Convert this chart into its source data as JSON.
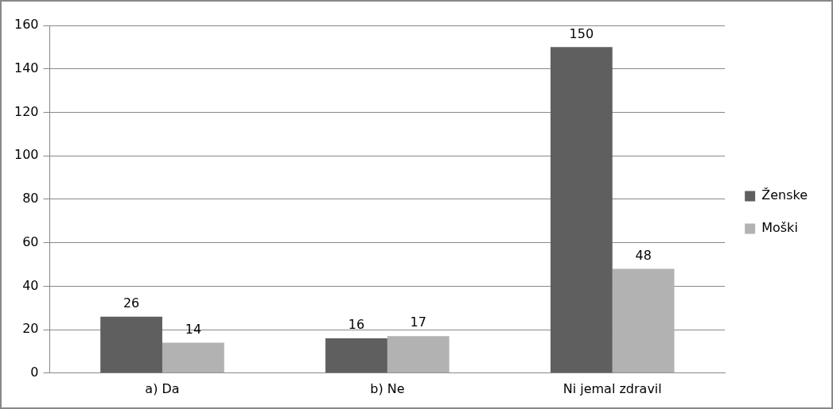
{
  "chart_data": {
    "type": "bar",
    "categories": [
      "a) Da",
      "b) Ne",
      "Ni jemal zdravil"
    ],
    "series": [
      {
        "name": "Ženske",
        "color": "#5f5f5f",
        "values": [
          26,
          16,
          150
        ]
      },
      {
        "name": "Moški",
        "color": "#b2b2b2",
        "values": [
          14,
          17,
          48
        ]
      }
    ],
    "ylim": [
      0,
      160
    ],
    "yticks": [
      0,
      20,
      40,
      60,
      80,
      100,
      120,
      140,
      160
    ],
    "grid": "y",
    "legend": "right",
    "data_labels": true
  }
}
